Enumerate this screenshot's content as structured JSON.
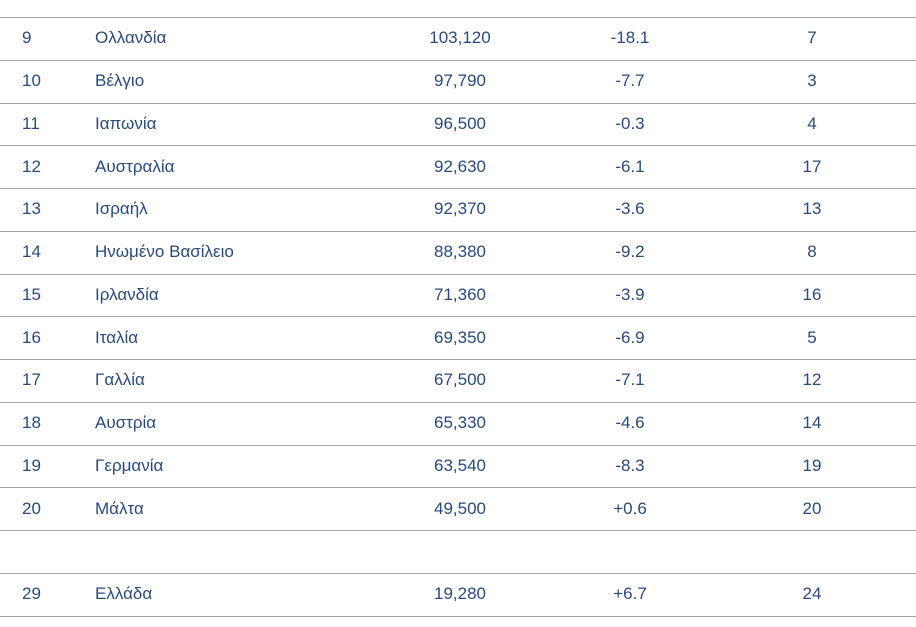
{
  "table": {
    "rows": [
      [
        "9",
        "Ολλανδία",
        "103,120",
        "-18.1",
        "7"
      ],
      [
        "10",
        "Βέλγιο",
        "97,790",
        "-7.7",
        "3"
      ],
      [
        "11",
        "Ιαπωνία",
        "96,500",
        "-0.3",
        "4"
      ],
      [
        "12",
        "Αυστραλία",
        "92,630",
        "-6.1",
        "17"
      ],
      [
        "13",
        "Ισραήλ",
        "92,370",
        "-3.6",
        "13"
      ],
      [
        "14",
        "Ηνωμένο Βασίλειο",
        "88,380",
        "-9.2",
        "8"
      ],
      [
        "15",
        "Ιρλανδία",
        "71,360",
        "-3.9",
        "16"
      ],
      [
        "16",
        "Ιταλία",
        "69,350",
        "-6.9",
        "5"
      ],
      [
        "17",
        "Γαλλία",
        "67,500",
        "-7.1",
        "12"
      ],
      [
        "18",
        "Αυστρία",
        "65,330",
        "-4.6",
        "14"
      ],
      [
        "19",
        "Γερμανία",
        "63,540",
        "-8.3",
        "19"
      ],
      [
        "20",
        "Μάλτα",
        "49,500",
        "+0.6",
        "20"
      ]
    ],
    "extra_rows": [
      [
        "29",
        "Ελλάδα",
        "19,280",
        "+6.7",
        "24"
      ]
    ]
  }
}
